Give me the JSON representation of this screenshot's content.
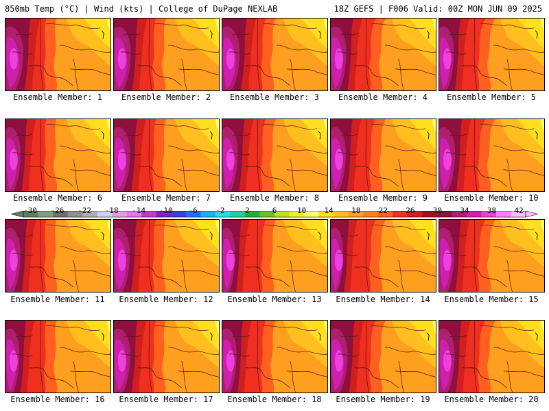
{
  "header": {
    "left": "850mb Temp (°C) | Wind (kts) | College of DuPage NEXLAB",
    "right": "18Z GEFS | F006 Valid: 00Z MON JUN 09 2025"
  },
  "legend": {
    "ticks": [
      "-30",
      "-26",
      "-22",
      "-18",
      "-14",
      "-10",
      "-6",
      "-2",
      "2",
      "6",
      "10",
      "14",
      "18",
      "22",
      "26",
      "30",
      "34",
      "38",
      "42"
    ],
    "colors": [
      "#5f7f5f",
      "#7f9f7f",
      "#6f6f6f",
      "#8f8f8f",
      "#afafaf",
      "#cfcfef",
      "#df9fdf",
      "#ef6fef",
      "#bf3fbf",
      "#7f1fcf",
      "#3f3fdf",
      "#1f6fff",
      "#1fafff",
      "#1fdfef",
      "#1fcf9f",
      "#1faf3f",
      "#6fbf1f",
      "#bfdf1f",
      "#efef1f",
      "#ffff6f",
      "#ffdf1f",
      "#ffbf1f",
      "#ff9f1f",
      "#ff7f1f",
      "#ff5f1f",
      "#ef2f1f",
      "#cf1f1f",
      "#a70f1f",
      "#8f0f3f",
      "#af1f6f",
      "#cf1faf",
      "#ef3fdf",
      "#ff7fff",
      "#ffbfff"
    ]
  },
  "members": [
    {
      "label": "Ensemble Member: 1",
      "hot": 0.62
    },
    {
      "label": "Ensemble Member: 2",
      "hot": 0.58
    },
    {
      "label": "Ensemble Member: 3",
      "hot": 0.6
    },
    {
      "label": "Ensemble Member: 4",
      "hot": 0.52
    },
    {
      "label": "Ensemble Member: 5",
      "hot": 0.48
    },
    {
      "label": "Ensemble Member: 6",
      "hot": 0.5
    },
    {
      "label": "Ensemble Member: 7",
      "hot": 0.55
    },
    {
      "label": "Ensemble Member: 8",
      "hot": 0.52
    },
    {
      "label": "Ensemble Member: 9",
      "hot": 0.5
    },
    {
      "label": "Ensemble Member: 10",
      "hot": 0.54
    },
    {
      "label": "Ensemble Member: 11",
      "hot": 0.5
    },
    {
      "label": "Ensemble Member: 12",
      "hot": 0.54
    },
    {
      "label": "Ensemble Member: 13",
      "hot": 0.4
    },
    {
      "label": "Ensemble Member: 14",
      "hot": 0.38
    },
    {
      "label": "Ensemble Member: 15",
      "hot": 0.5
    },
    {
      "label": "Ensemble Member: 16",
      "hot": 0.45
    },
    {
      "label": "Ensemble Member: 17",
      "hot": 0.56
    },
    {
      "label": "Ensemble Member: 18",
      "hot": 0.46
    },
    {
      "label": "Ensemble Member: 19",
      "hot": 0.58
    },
    {
      "label": "Ensemble Member: 20",
      "hot": 0.52
    }
  ]
}
